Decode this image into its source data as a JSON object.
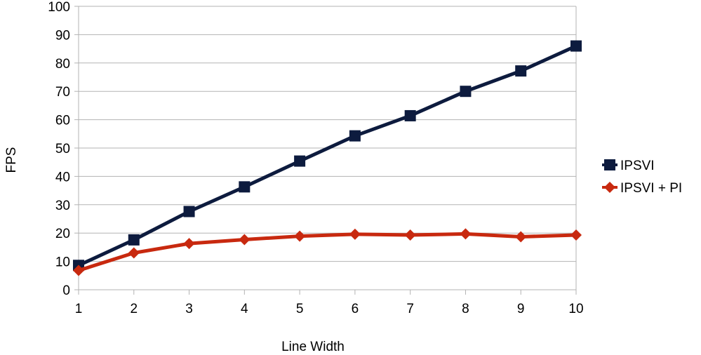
{
  "chart_data": {
    "type": "line",
    "title": "",
    "xlabel": "Line Width",
    "ylabel": "FPS",
    "x": [
      1,
      2,
      3,
      4,
      5,
      6,
      7,
      8,
      9,
      10
    ],
    "x_tick_labels": [
      "1",
      "2",
      "3",
      "4",
      "5",
      "6",
      "7",
      "8",
      "9",
      "10"
    ],
    "ylim": [
      0,
      100
    ],
    "y_ticks": [
      0,
      10,
      20,
      30,
      40,
      50,
      60,
      70,
      80,
      90,
      100
    ],
    "y_tick_labels": [
      "0",
      "10",
      "20",
      "30",
      "40",
      "50",
      "60",
      "70",
      "80",
      "90",
      "100"
    ],
    "grid": "horizontal",
    "legend_position": "right",
    "series": [
      {
        "name": "IPSVI",
        "marker": "square",
        "color": "#0d1b3e",
        "values": [
          8.6,
          17.6,
          27.6,
          36.3,
          45.4,
          54.3,
          61.4,
          70.0,
          77.2,
          86.0
        ]
      },
      {
        "name": "IPSVI + PI",
        "marker": "diamond",
        "color": "#c8290f",
        "values": [
          6.8,
          13.0,
          16.3,
          17.7,
          18.9,
          19.6,
          19.3,
          19.7,
          18.7,
          19.3
        ]
      }
    ]
  }
}
